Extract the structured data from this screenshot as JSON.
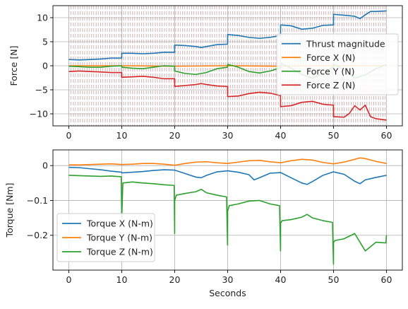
{
  "chart_data": [
    {
      "type": "line",
      "title": "",
      "xlabel": "",
      "ylabel": "Force [N]",
      "xlim": [
        -3,
        63
      ],
      "ylim": [
        -12.5,
        12.5
      ],
      "xticks": [
        0,
        10,
        20,
        30,
        40,
        50,
        60
      ],
      "yticks": [
        -10,
        -5,
        0,
        5,
        10
      ],
      "grid": true,
      "legend_position": "right",
      "vertical_markers": "dense dashed gray and red vertical lines from x=0 to x=60 (roughly every 1 s)",
      "series": [
        {
          "name": "Thrust magnitude",
          "color": "#1f77b4",
          "x": [
            0,
            2,
            4,
            6,
            8,
            9.99,
            10,
            12,
            14,
            16,
            18,
            19.99,
            20,
            22,
            24,
            25,
            26,
            28,
            29.99,
            30,
            32,
            34,
            36,
            38,
            39.99,
            40,
            42,
            44,
            46,
            48,
            49.99,
            50,
            52,
            54,
            55,
            56,
            57,
            58,
            60
          ],
          "y": [
            1.3,
            1.2,
            1.3,
            1.4,
            1.6,
            1.6,
            2.6,
            2.6,
            2.5,
            2.6,
            2.8,
            2.8,
            4.3,
            4.2,
            4.0,
            3.8,
            4.0,
            4.4,
            4.5,
            6.5,
            6.3,
            5.9,
            5.7,
            5.9,
            6.3,
            8.5,
            8.3,
            7.6,
            7.8,
            8.4,
            8.5,
            10.7,
            10.5,
            10.3,
            9.8,
            10.6,
            11.3,
            11.3,
            11.4
          ]
        },
        {
          "name": "Force X (N)",
          "color": "#ff7f0e",
          "x": [
            0,
            10,
            20,
            30,
            40,
            50,
            60
          ],
          "y": [
            0.0,
            0.0,
            -0.1,
            0.0,
            -0.1,
            0.0,
            0.0
          ]
        },
        {
          "name": "Force Y (N)",
          "color": "#2ca02c",
          "x": [
            0,
            2,
            4,
            6,
            8,
            9.99,
            10,
            12,
            14,
            16,
            18,
            19.99,
            20,
            22,
            24,
            26,
            28,
            29.99,
            30,
            32,
            34,
            36,
            38,
            39.99,
            40,
            42,
            44,
            46,
            48,
            49.99,
            50,
            52,
            54,
            56,
            58,
            60
          ],
          "y": [
            -0.1,
            -0.2,
            -0.3,
            -0.3,
            -0.1,
            0.0,
            -0.3,
            -0.5,
            -0.6,
            -0.3,
            0.0,
            -0.1,
            -1.1,
            -1.6,
            -1.8,
            -1.4,
            -0.6,
            -0.3,
            0.3,
            -0.3,
            -1.2,
            -1.5,
            -1.1,
            -0.4,
            0.5,
            -0.5,
            -1.8,
            -2.6,
            -1.6,
            -0.2,
            0.3,
            -0.8,
            -2.6,
            -1.9,
            -0.6,
            0.2
          ]
        },
        {
          "name": "Force Z (N)",
          "color": "#d62728",
          "x": [
            0,
            2,
            4,
            6,
            8,
            9.99,
            10,
            12,
            14,
            16,
            18,
            19.99,
            20,
            22,
            24,
            25,
            26,
            28,
            29.99,
            30,
            32,
            34,
            36,
            38,
            39.99,
            40,
            42,
            44,
            46,
            48,
            49.99,
            50,
            52,
            53,
            54,
            55,
            56,
            57,
            58,
            60
          ],
          "y": [
            -1.2,
            -1.1,
            -1.2,
            -1.3,
            -1.4,
            -1.4,
            -2.4,
            -2.3,
            -2.2,
            -2.4,
            -2.7,
            -2.7,
            -4.3,
            -4.1,
            -3.9,
            -3.7,
            -3.9,
            -4.2,
            -4.3,
            -6.4,
            -6.3,
            -5.8,
            -5.5,
            -5.7,
            -6.2,
            -8.5,
            -8.3,
            -7.6,
            -7.4,
            -8.0,
            -8.2,
            -10.6,
            -10.7,
            -9.9,
            -8.3,
            -9.2,
            -8.2,
            -10.6,
            -11.0,
            -11.3
          ]
        }
      ]
    },
    {
      "type": "line",
      "title": "",
      "xlabel": "Seconds",
      "ylabel": "Torque [Nm]",
      "xlim": [
        -3,
        63
      ],
      "ylim": [
        -0.3,
        0.045
      ],
      "xticks": [
        0,
        10,
        20,
        30,
        40,
        50,
        60
      ],
      "yticks": [
        -0.2,
        -0.1,
        0.0
      ],
      "grid": true,
      "legend_position": "lower-left",
      "series": [
        {
          "name": "Torque X (N-m)",
          "color": "#1f77b4",
          "x": [
            0,
            2,
            4,
            6,
            8,
            9.99,
            10,
            12,
            14,
            16,
            18,
            20,
            22,
            24,
            25,
            26,
            28,
            30,
            32,
            34,
            35,
            36,
            38,
            40,
            42,
            44,
            45,
            46,
            48,
            50,
            52,
            54,
            55,
            56,
            58,
            60
          ],
          "y": [
            -0.005,
            -0.006,
            -0.009,
            -0.012,
            -0.016,
            -0.019,
            -0.021,
            -0.019,
            -0.017,
            -0.014,
            -0.012,
            -0.013,
            -0.023,
            -0.033,
            -0.035,
            -0.028,
            -0.018,
            -0.015,
            -0.019,
            -0.026,
            -0.041,
            -0.035,
            -0.022,
            -0.02,
            -0.035,
            -0.05,
            -0.054,
            -0.046,
            -0.028,
            -0.018,
            -0.025,
            -0.045,
            -0.052,
            -0.041,
            -0.034,
            -0.028
          ]
        },
        {
          "name": "Torque Y (N-m)",
          "color": "#ff7f0e",
          "x": [
            0,
            2,
            4,
            6,
            8,
            10,
            12,
            14,
            16,
            18,
            20,
            22,
            24,
            26,
            28,
            30,
            32,
            34,
            36,
            38,
            40,
            42,
            44,
            46,
            48,
            50,
            52,
            54,
            55,
            56,
            58,
            60
          ],
          "y": [
            0.002,
            0.002,
            0.003,
            0.004,
            0.005,
            0.003,
            0.004,
            0.006,
            0.006,
            0.004,
            0.001,
            0.006,
            0.01,
            0.011,
            0.008,
            0.006,
            0.01,
            0.014,
            0.015,
            0.011,
            0.008,
            0.014,
            0.018,
            0.016,
            0.009,
            0.005,
            0.01,
            0.018,
            0.022,
            0.02,
            0.012,
            0.006
          ]
        },
        {
          "name": "Torque Z (N-m)",
          "color": "#2ca02c",
          "x": [
            0,
            2,
            4,
            6,
            8,
            9.9,
            9.99,
            10.0,
            10.2,
            12,
            14,
            16,
            18,
            19.9,
            19.99,
            20.0,
            20.3,
            22,
            24,
            25,
            26,
            28,
            29.8,
            29.99,
            30.0,
            30.3,
            32,
            34,
            36,
            38,
            39.8,
            39.99,
            40.0,
            40.3,
            42,
            44,
            45,
            46,
            48,
            49.8,
            49.99,
            50.0,
            50.3,
            52,
            54,
            55,
            56,
            58,
            59.9,
            60
          ],
          "y": [
            -0.028,
            -0.029,
            -0.03,
            -0.031,
            -0.03,
            -0.032,
            -0.14,
            -0.15,
            -0.05,
            -0.047,
            -0.05,
            -0.052,
            -0.055,
            -0.057,
            -0.195,
            -0.1,
            -0.085,
            -0.08,
            -0.075,
            -0.068,
            -0.078,
            -0.085,
            -0.09,
            -0.228,
            -0.13,
            -0.115,
            -0.11,
            -0.102,
            -0.1,
            -0.11,
            -0.115,
            -0.245,
            -0.165,
            -0.158,
            -0.155,
            -0.148,
            -0.14,
            -0.15,
            -0.158,
            -0.163,
            -0.283,
            -0.22,
            -0.215,
            -0.21,
            -0.195,
            -0.22,
            -0.245,
            -0.22,
            -0.222,
            -0.2
          ]
        }
      ]
    }
  ]
}
